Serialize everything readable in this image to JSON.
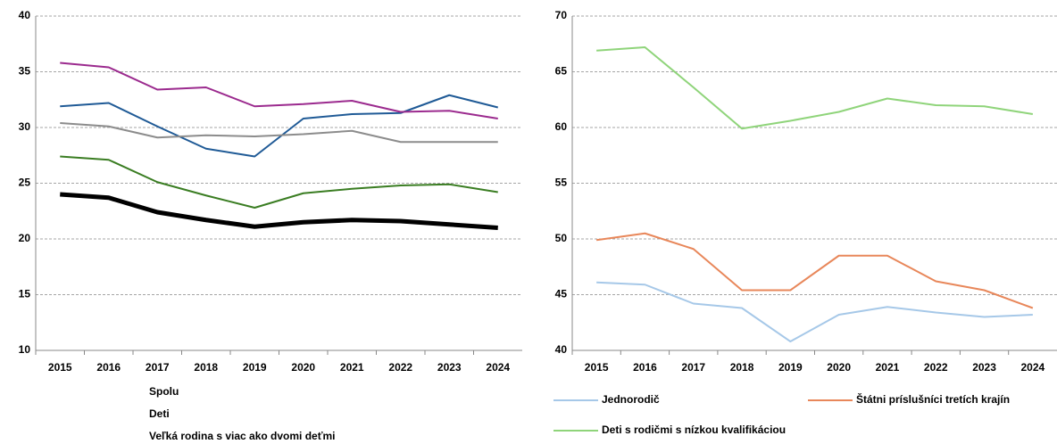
{
  "chart_data": [
    {
      "type": "line",
      "categories": [
        "2015",
        "2016",
        "2017",
        "2018",
        "2019",
        "2020",
        "2021",
        "2022",
        "2023",
        "2024"
      ],
      "ylim": [
        10,
        40
      ],
      "yticks": [
        10,
        15,
        20,
        25,
        30,
        35,
        40
      ],
      "grid": true,
      "series": [
        {
          "name": "Spolu",
          "color": "#000000",
          "values": [
            24.0,
            23.7,
            22.4,
            21.7,
            21.1,
            21.5,
            21.7,
            21.6,
            21.3,
            21.0
          ]
        },
        {
          "name": "Deti",
          "color": "#3a7d22",
          "values": [
            27.4,
            27.1,
            25.1,
            23.9,
            22.8,
            24.1,
            24.5,
            24.8,
            24.9,
            24.2
          ]
        },
        {
          "name": "Veľká rodina s viac ako dvomi deťmi",
          "color": "#1f5a96",
          "values": [
            31.9,
            32.2,
            30.1,
            28.1,
            27.4,
            30.8,
            31.2,
            31.3,
            32.9,
            31.8
          ]
        },
        {
          "color": "#9b2a8e",
          "values": [
            35.8,
            35.4,
            33.4,
            33.6,
            31.9,
            32.1,
            32.4,
            31.4,
            31.5,
            30.8
          ]
        },
        {
          "color": "#8c8c8c",
          "values": [
            30.4,
            30.1,
            29.1,
            29.3,
            29.2,
            29.4,
            29.7,
            28.7,
            28.7,
            28.7
          ]
        }
      ]
    },
    {
      "type": "line",
      "categories": [
        "2015",
        "2016",
        "2017",
        "2018",
        "2019",
        "2020",
        "2021",
        "2022",
        "2023",
        "2024"
      ],
      "ylim": [
        40,
        70
      ],
      "yticks": [
        40,
        45,
        50,
        55,
        60,
        65,
        70
      ],
      "grid": true,
      "series": [
        {
          "name": "Jednorodič",
          "color": "#a6c8e8",
          "values": [
            46.1,
            45.9,
            44.2,
            43.8,
            40.8,
            43.2,
            43.9,
            43.4,
            43.0,
            43.2
          ]
        },
        {
          "name": "Štátni príslušníci tretích krajín",
          "color": "#e8875a",
          "values": [
            49.9,
            50.5,
            49.1,
            45.4,
            45.4,
            48.5,
            48.5,
            46.2,
            45.4,
            43.8
          ]
        },
        {
          "name": "Deti s rodičmi s nízkou kvalifikáciou",
          "color": "#8fd47a",
          "values": [
            66.9,
            67.2,
            63.6,
            59.9,
            60.6,
            61.4,
            62.6,
            62.0,
            61.9,
            61.2
          ]
        }
      ]
    }
  ]
}
